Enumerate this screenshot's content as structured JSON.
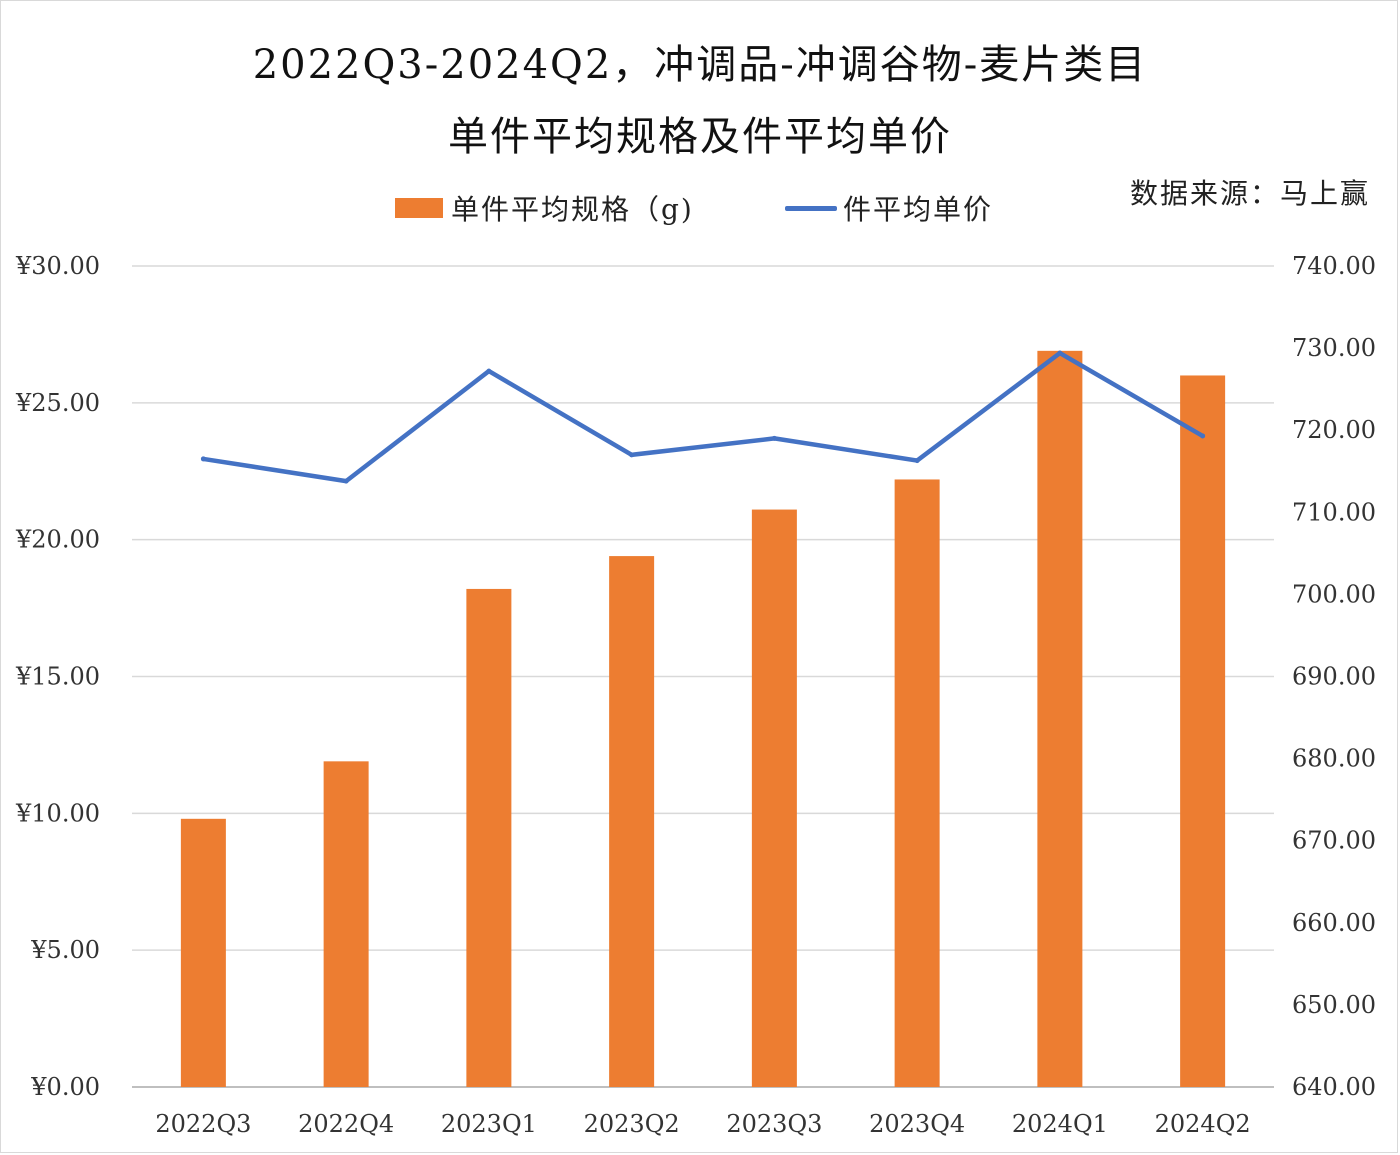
{
  "title_line1": "2022Q3-2024Q2，冲调品-冲调谷物-麦片类目",
  "title_line2": "单件平均规格及件平均单价",
  "source": "数据来源：马上赢",
  "colors": {
    "bar": "#ED7D31",
    "line": "#4472C4",
    "grid": "#d9d9d9",
    "axis": "#bfbfbf"
  },
  "chart_data": {
    "type": "bar+line",
    "title": "2022Q3-2024Q2，冲调品-冲调谷物-麦片类目 单件平均规格及件平均单价",
    "categories": [
      "2022Q3",
      "2022Q4",
      "2023Q1",
      "2023Q2",
      "2023Q3",
      "2023Q4",
      "2024Q1",
      "2024Q2"
    ],
    "series": [
      {
        "name": "单件平均规格（g)",
        "type": "bar",
        "axis": "left",
        "values": [
          9.8,
          11.9,
          18.2,
          19.4,
          21.1,
          22.2,
          26.9,
          26.0
        ]
      },
      {
        "name": "件平均单价",
        "type": "line",
        "axis": "right",
        "values": [
          716.5,
          713.8,
          727.2,
          717.0,
          719.0,
          716.3,
          729.4,
          719.3
        ]
      }
    ],
    "left_axis": {
      "min": 0,
      "max": 30,
      "step": 5,
      "tick_labels": [
        "¥0.00",
        "¥5.00",
        "¥10.00",
        "¥15.00",
        "¥20.00",
        "¥25.00",
        "¥30.00"
      ]
    },
    "right_axis": {
      "min": 640,
      "max": 740,
      "step": 10,
      "tick_labels": [
        "640.00",
        "650.00",
        "660.00",
        "670.00",
        "680.00",
        "690.00",
        "700.00",
        "710.00",
        "720.00",
        "730.00",
        "740.00"
      ]
    },
    "legend_position": "top-center",
    "grid": true
  }
}
